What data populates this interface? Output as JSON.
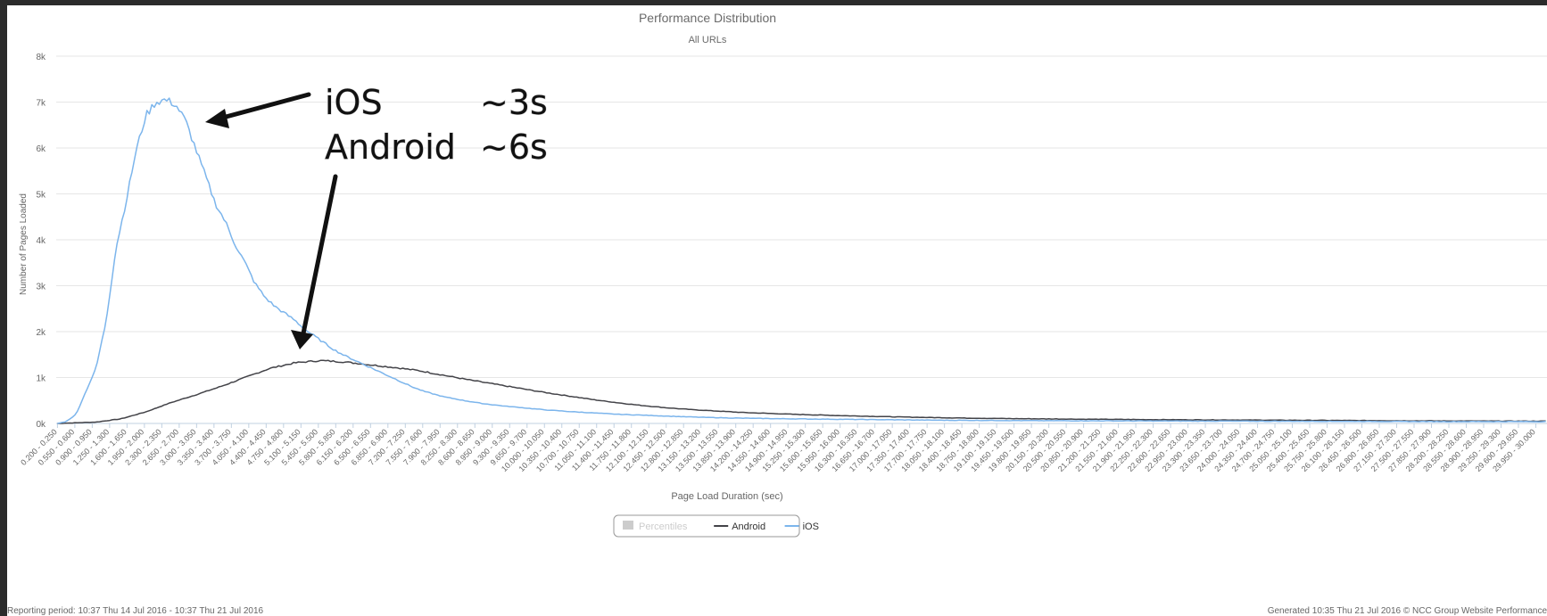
{
  "chart_data": {
    "type": "line",
    "title": "Performance Distribution",
    "subtitle": "All URLs",
    "xlabel": "Page Load Duration (sec)",
    "ylabel": "Number of Pages Loaded",
    "ylim": [
      0,
      8000
    ],
    "y_ticks": [
      "0k",
      "1k",
      "2k",
      "3k",
      "4k",
      "5k",
      "6k",
      "7k",
      "8k"
    ],
    "x_bin_start": 0.2,
    "x_bin_width": 0.05,
    "x_label_every": 7,
    "x_bins_visible": 600,
    "grid": true,
    "legend": {
      "position": "bottom-center",
      "items": [
        {
          "name": "Percentiles",
          "color": "#cccccc",
          "symbol": "square",
          "inactive": true
        },
        {
          "name": "Android",
          "color": "#434348",
          "symbol": "line"
        },
        {
          "name": "iOS",
          "color": "#7cb5ec",
          "symbol": "line"
        }
      ]
    },
    "series": [
      {
        "name": "iOS",
        "color": "#7cb5ec",
        "x": [
          0.225,
          0.4,
          0.6,
          0.8,
          1.0,
          1.2,
          1.4,
          1.6,
          1.8,
          2.0,
          2.2,
          2.4,
          2.6,
          2.8,
          3.0,
          3.2,
          3.4,
          3.6,
          3.8,
          4.0,
          4.2,
          4.4,
          4.6,
          4.8,
          5.0,
          5.2,
          5.4,
          5.6,
          5.8,
          6.0,
          6.2,
          6.4,
          6.6,
          6.8,
          7.0,
          7.2,
          7.4,
          7.6,
          7.8,
          8.0,
          8.4,
          8.8,
          9.2,
          9.6,
          10.0,
          10.5,
          11.0,
          11.5,
          12.0,
          12.5,
          13.0,
          13.5,
          14.0,
          15.0,
          16.0,
          17.0,
          18.0,
          19.0,
          20.0,
          22.0,
          24.0,
          26.0,
          28.0,
          29.975
        ],
        "values": [
          0,
          40,
          200,
          700,
          1200,
          2200,
          3800,
          4800,
          5900,
          6700,
          7000,
          7050,
          6950,
          6600,
          6000,
          5400,
          4800,
          4400,
          3900,
          3500,
          3050,
          2750,
          2550,
          2400,
          2250,
          2050,
          1900,
          1750,
          1600,
          1480,
          1380,
          1280,
          1180,
          1080,
          980,
          880,
          780,
          700,
          640,
          580,
          500,
          430,
          380,
          340,
          300,
          260,
          230,
          200,
          180,
          160,
          140,
          125,
          115,
          100,
          90,
          80,
          70,
          65,
          60,
          55,
          50,
          45,
          40,
          40
        ]
      },
      {
        "name": "Android",
        "color": "#434348",
        "x": [
          0.225,
          1.0,
          1.5,
          2.0,
          2.5,
          3.0,
          3.5,
          4.0,
          4.5,
          5.0,
          5.5,
          6.0,
          6.5,
          7.0,
          7.5,
          8.0,
          8.5,
          9.0,
          9.5,
          10.0,
          10.5,
          11.0,
          11.5,
          12.0,
          12.5,
          13.0,
          13.5,
          14.0,
          15.0,
          16.0,
          17.0,
          18.0,
          19.0,
          20.0,
          22.0,
          24.0,
          26.0,
          28.0,
          29.975
        ],
        "values": [
          0,
          30,
          100,
          250,
          450,
          620,
          800,
          1000,
          1200,
          1320,
          1370,
          1340,
          1280,
          1220,
          1150,
          1050,
          950,
          860,
          770,
          680,
          600,
          520,
          450,
          390,
          340,
          300,
          270,
          240,
          200,
          170,
          145,
          125,
          110,
          100,
          85,
          75,
          65,
          55,
          50
        ]
      }
    ]
  },
  "annotation": {
    "ios_label": "iOS",
    "ios_value": "~3s",
    "android_label": "Android",
    "android_value": "~6s"
  },
  "footer": {
    "left": "Reporting period: 10:37 Thu 14 Jul 2016 - 10:37 Thu 21 Jul 2016",
    "right": "Generated 10:35 Thu 21 Jul 2016 © NCC Group Website Performance"
  }
}
